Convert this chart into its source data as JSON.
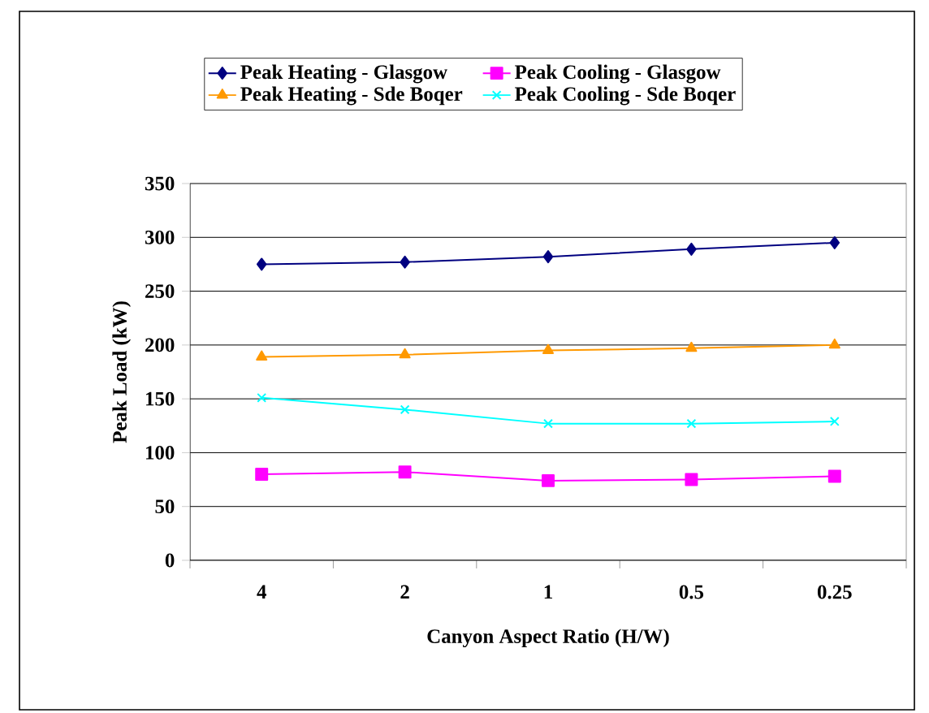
{
  "chart_data": {
    "type": "line",
    "xlabel": "Canyon Aspect Ratio (H/W)",
    "ylabel": "Peak Load (kW)",
    "categories": [
      "4",
      "2",
      "1",
      "0.5",
      "0.25"
    ],
    "series": [
      {
        "name": "Peak Heating - Glasgow",
        "color": "#000080",
        "marker": "diamond",
        "values": [
          275,
          277,
          282,
          289,
          295
        ]
      },
      {
        "name": "Peak Cooling - Glasgow",
        "color": "#ff00ff",
        "marker": "square",
        "values": [
          80,
          82,
          74,
          75,
          78
        ]
      },
      {
        "name": "Peak Heating - Sde Boqer",
        "color": "#ff9900",
        "marker": "triangle",
        "values": [
          189,
          191,
          195,
          197,
          200
        ]
      },
      {
        "name": "Peak Cooling - Sde Boqer",
        "color": "#00ffff",
        "marker": "cross",
        "values": [
          151,
          140,
          127,
          127,
          129
        ]
      }
    ],
    "ylim": [
      0,
      350
    ],
    "yticks": [
      0,
      50,
      100,
      150,
      200,
      250,
      300,
      350
    ],
    "grid": "y",
    "legend": "top",
    "line_style": "solid"
  }
}
